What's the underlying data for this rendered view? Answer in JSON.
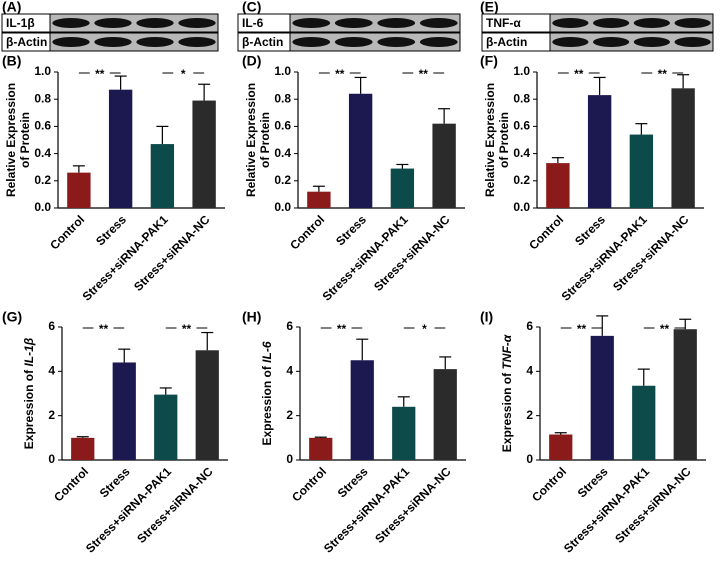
{
  "blots": [
    {
      "panel": "(A)",
      "labels": [
        "IL-1β",
        "β-Actin"
      ]
    },
    {
      "panel": "(C)",
      "labels": [
        "IL-6",
        "β-Actin"
      ]
    },
    {
      "panel": "(E)",
      "labels": [
        "TNF-α",
        "β-Actin"
      ]
    }
  ],
  "chart_data": [
    {
      "type": "bar",
      "panel": "(B)",
      "ylabel": [
        "Relative Expression",
        "of Protein"
      ],
      "categories": [
        "Control",
        "Stress",
        "Stress+siRNA-PAK1",
        "Stress+siRNA-NC"
      ],
      "colors": [
        "#8b1a1a",
        "#1c1850",
        "#0d4a4a",
        "#2b2b2b"
      ],
      "values": [
        0.26,
        0.87,
        0.47,
        0.79
      ],
      "errors": [
        0.05,
        0.1,
        0.13,
        0.12
      ],
      "ylim": [
        0,
        1
      ],
      "yticks": [
        {
          "value": 0,
          "label": "0.0"
        },
        0.2,
        0.4,
        0.6,
        0.8,
        {
          "value": 1,
          "label": "1.0"
        }
      ],
      "annotations": [
        {
          "label": "**",
          "between": [
            0,
            1
          ]
        },
        {
          "label": "*",
          "between": [
            2,
            3
          ]
        }
      ]
    },
    {
      "type": "bar",
      "panel": "(D)",
      "ylabel": [
        "Relative Expression",
        "of Protein"
      ],
      "categories": [
        "Control",
        "Stress",
        "Stress+siRNA-PAK1",
        "Stress+siRNA-NC"
      ],
      "colors": [
        "#8b1a1a",
        "#1c1850",
        "#0d4a4a",
        "#2b2b2b"
      ],
      "values": [
        0.12,
        0.84,
        0.29,
        0.62
      ],
      "errors": [
        0.04,
        0.12,
        0.03,
        0.11
      ],
      "ylim": [
        0,
        1
      ],
      "yticks": [
        {
          "value": 0,
          "label": "0.0"
        },
        0.2,
        0.4,
        0.6,
        0.8,
        {
          "value": 1,
          "label": "1.0"
        }
      ],
      "annotations": [
        {
          "label": "**",
          "between": [
            0,
            1
          ]
        },
        {
          "label": "**",
          "between": [
            2,
            3
          ]
        }
      ]
    },
    {
      "type": "bar",
      "panel": "(F)",
      "ylabel": [
        "Relative Expression",
        "of Protein"
      ],
      "categories": [
        "Control",
        "Stress",
        "Stress+siRNA-PAK1",
        "Stress+siRNA-NC"
      ],
      "colors": [
        "#8b1a1a",
        "#1c1850",
        "#0d4a4a",
        "#2b2b2b"
      ],
      "values": [
        0.33,
        0.83,
        0.54,
        0.88
      ],
      "errors": [
        0.04,
        0.13,
        0.08,
        0.1
      ],
      "ylim": [
        0,
        1
      ],
      "yticks": [
        {
          "value": 0,
          "label": "0.0"
        },
        0.2,
        0.4,
        0.6,
        0.8,
        {
          "value": 1,
          "label": "1.0"
        }
      ],
      "annotations": [
        {
          "label": "**",
          "between": [
            0,
            1
          ]
        },
        {
          "label": "**",
          "between": [
            2,
            3
          ]
        }
      ]
    },
    {
      "type": "bar",
      "panel": "(G)",
      "ylabel": [
        "Expression of "
      ],
      "ylabel_gene": "IL-1β",
      "categories": [
        "Control",
        "Stress",
        "Stress+siRNA-PAK1",
        "Stress+siRNA-NC"
      ],
      "colors": [
        "#8b1a1a",
        "#1c1850",
        "#0d4a4a",
        "#2b2b2b"
      ],
      "values": [
        1.0,
        4.4,
        2.95,
        4.95
      ],
      "errors": [
        0.05,
        0.6,
        0.3,
        0.8
      ],
      "ylim": [
        0,
        6
      ],
      "yticks": [
        0,
        2,
        4,
        6
      ],
      "annotations": [
        {
          "label": "**",
          "between": [
            0,
            1
          ]
        },
        {
          "label": "**",
          "between": [
            2,
            3
          ]
        }
      ]
    },
    {
      "type": "bar",
      "panel": "(H)",
      "ylabel": [
        "Expression of "
      ],
      "ylabel_gene": "IL-6",
      "categories": [
        "Control",
        "Stress",
        "Stress+siRNA-PAK1",
        "Stress+siRNA-NC"
      ],
      "colors": [
        "#8b1a1a",
        "#1c1850",
        "#0d4a4a",
        "#2b2b2b"
      ],
      "values": [
        1.0,
        4.5,
        2.4,
        4.1
      ],
      "errors": [
        0.03,
        0.95,
        0.45,
        0.55
      ],
      "ylim": [
        0,
        6
      ],
      "yticks": [
        0,
        2,
        4,
        6
      ],
      "annotations": [
        {
          "label": "**",
          "between": [
            0,
            1
          ]
        },
        {
          "label": "*",
          "between": [
            2,
            3
          ]
        }
      ]
    },
    {
      "type": "bar",
      "panel": "(I)",
      "ylabel": [
        "Expression of "
      ],
      "ylabel_gene": "TNF-α",
      "categories": [
        "Control",
        "Stress",
        "Stress+siRNA-PAK1",
        "Stress+siRNA-NC"
      ],
      "colors": [
        "#8b1a1a",
        "#1c1850",
        "#0d4a4a",
        "#2b2b2b"
      ],
      "values": [
        1.15,
        5.6,
        3.35,
        5.9
      ],
      "errors": [
        0.08,
        0.9,
        0.75,
        0.45
      ],
      "ylim": [
        0,
        6
      ],
      "yticks": [
        0,
        2,
        4,
        6
      ],
      "annotations": [
        {
          "label": "**",
          "between": [
            0,
            1
          ]
        },
        {
          "label": "**",
          "between": [
            2,
            3
          ]
        }
      ]
    }
  ]
}
